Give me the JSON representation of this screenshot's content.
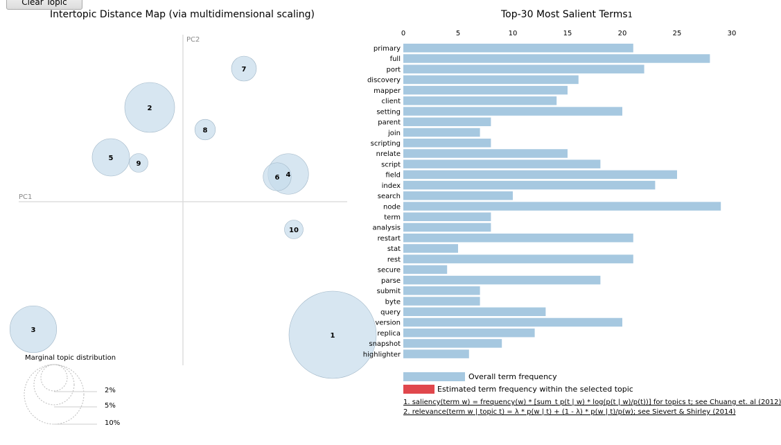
{
  "toolbar": {
    "clear_label": "Clear Topic"
  },
  "left_panel": {
    "title": "Intertopic Distance Map (via multidimensional scaling)",
    "axis_pc1": "PC1",
    "axis_pc2": "PC2",
    "marginal_title": "Marginal topic distribution",
    "marginal_labels": [
      "2%",
      "5%",
      "10%"
    ]
  },
  "right_panel": {
    "title": "Top-30 Most Salient Terms",
    "title_sup": "1",
    "legend_overall": "Overall term frequency",
    "legend_estimated": "Estimated term frequency within the selected topic",
    "footnote1": "1. saliency(term w) = frequency(w) * [sum_t p(t | w) * log(p(t | w)/p(t))] for topics t; see Chuang et. al (2012)",
    "footnote2": "2. relevance(term w | topic t) = λ * p(w | t) + (1 - λ) * p(w | t)/p(w); see Sievert & Shirley (2014)"
  },
  "colors": {
    "bar": "#a6c8e0",
    "bubble": "#c6dbeb",
    "bubble_stroke": "#9fb5c6",
    "estimated": "#e0474c"
  },
  "chart_data": [
    {
      "type": "scatter",
      "title": "Intertopic Distance Map (via multidimensional scaling)",
      "xlabel": "PC1",
      "ylabel": "PC2",
      "points": [
        {
          "label": "1",
          "x": 0.27,
          "y": -0.24,
          "size": 0.14
        },
        {
          "label": "2",
          "x": -0.06,
          "y": 0.17,
          "size": 0.08
        },
        {
          "label": "3",
          "x": -0.27,
          "y": -0.23,
          "size": 0.075
        },
        {
          "label": "4",
          "x": 0.19,
          "y": 0.05,
          "size": 0.065
        },
        {
          "label": "5",
          "x": -0.13,
          "y": 0.08,
          "size": 0.06
        },
        {
          "label": "6",
          "x": 0.17,
          "y": 0.045,
          "size": 0.045
        },
        {
          "label": "7",
          "x": 0.11,
          "y": 0.24,
          "size": 0.04
        },
        {
          "label": "8",
          "x": 0.04,
          "y": 0.13,
          "size": 0.033
        },
        {
          "label": "9",
          "x": -0.08,
          "y": 0.07,
          "size": 0.03
        },
        {
          "label": "10",
          "x": 0.2,
          "y": -0.05,
          "size": 0.03
        }
      ]
    },
    {
      "type": "bar",
      "orientation": "horizontal",
      "title": "Top-30 Most Salient Terms",
      "categories": [
        "primary",
        "full",
        "port",
        "discovery",
        "mapper",
        "client",
        "setting",
        "parent",
        "join",
        "scripting",
        "nrelate",
        "script",
        "field",
        "index",
        "search",
        "node",
        "term",
        "analysis",
        "restart",
        "stat",
        "rest",
        "secure",
        "parse",
        "submit",
        "byte",
        "query",
        "version",
        "replica",
        "snapshot",
        "highlighter"
      ],
      "series": [
        {
          "name": "Overall term frequency",
          "values": [
            21,
            28,
            22,
            16,
            15,
            14,
            20,
            8,
            7,
            8,
            15,
            18,
            25,
            23,
            10,
            29,
            8,
            8,
            21,
            5,
            21,
            4,
            18,
            7,
            7,
            13,
            20,
            12,
            9,
            6
          ]
        }
      ],
      "xticks": [
        0,
        5,
        10,
        15,
        20,
        25,
        30
      ],
      "xlim": [
        0,
        30
      ]
    }
  ]
}
